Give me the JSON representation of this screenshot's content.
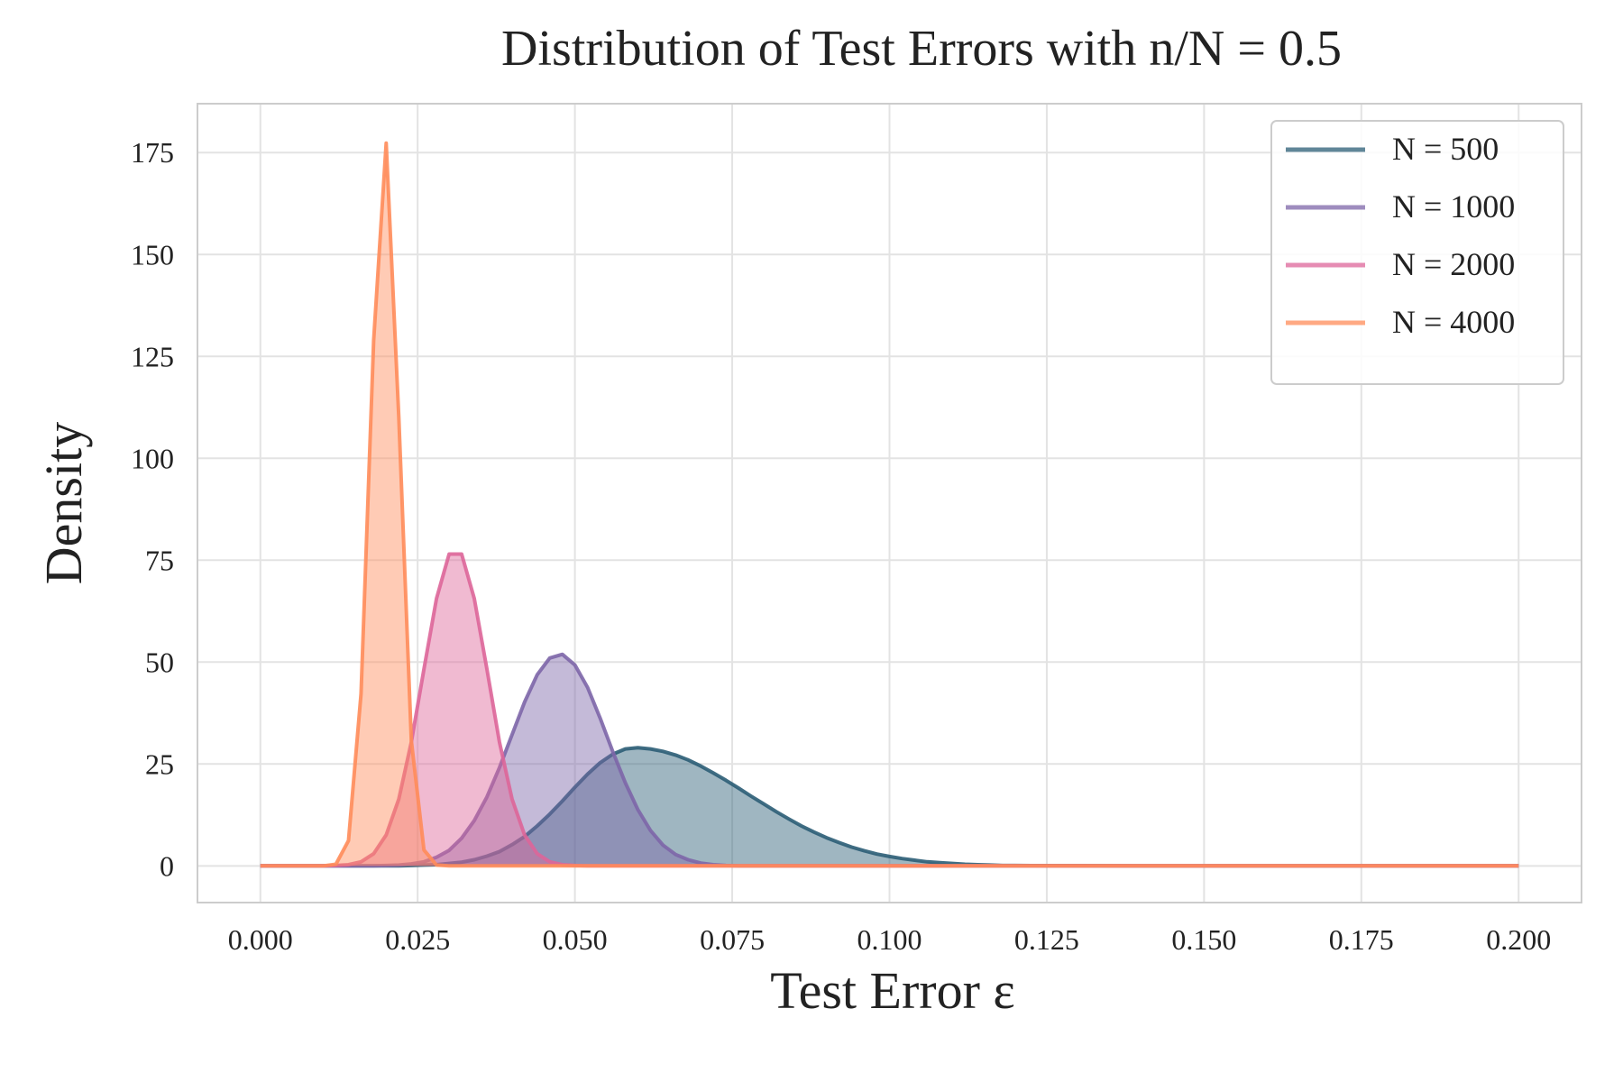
{
  "chart_data": {
    "type": "area-line",
    "title": "Distribution of Test Errors with n/N = 0.5",
    "xlabel": "Test Error ε",
    "ylabel": "Density",
    "x": [
      0,
      0.002,
      0.004,
      0.006,
      0.008,
      0.01,
      0.012,
      0.014,
      0.016,
      0.018,
      0.02,
      0.022,
      0.024,
      0.026,
      0.028,
      0.03,
      0.032,
      0.034,
      0.036,
      0.038,
      0.04,
      0.042,
      0.044,
      0.046,
      0.048,
      0.05,
      0.052,
      0.054,
      0.056,
      0.058,
      0.06,
      0.062,
      0.064,
      0.066,
      0.068,
      0.07,
      0.072,
      0.074,
      0.076,
      0.078,
      0.08,
      0.082,
      0.084,
      0.086,
      0.088,
      0.09,
      0.092,
      0.094,
      0.096,
      0.098,
      0.1,
      0.102,
      0.104,
      0.106,
      0.108,
      0.11,
      0.112,
      0.114,
      0.116,
      0.118,
      0.12,
      0.14,
      0.16,
      0.18,
      0.2
    ],
    "series": [
      {
        "name": "N = 500",
        "color": "#2b5d76",
        "values": [
          0,
          0,
          0,
          0,
          0,
          0,
          0,
          0,
          0,
          0,
          0,
          0,
          0.1,
          0.2,
          0.3,
          0.6,
          0.9,
          1.5,
          2.4,
          3.5,
          5.2,
          7.2,
          9.8,
          12.7,
          15.9,
          19.3,
          22.5,
          25.3,
          27.4,
          28.7,
          29.0,
          28.7,
          28.1,
          27.2,
          26.0,
          24.5,
          22.8,
          21.0,
          19.1,
          17.1,
          15.2,
          13.3,
          11.5,
          9.8,
          8.3,
          6.9,
          5.7,
          4.6,
          3.7,
          2.9,
          2.3,
          1.8,
          1.4,
          1.0,
          0.8,
          0.6,
          0.4,
          0.3,
          0.2,
          0.1,
          0.1,
          0,
          0,
          0,
          0
        ]
      },
      {
        "name": "N = 1000",
        "color": "#7d66a8",
        "values": [
          0,
          0,
          0,
          0,
          0,
          0,
          0,
          0,
          0,
          0,
          0.1,
          0.2,
          0.5,
          1.0,
          2.1,
          3.8,
          6.8,
          11.1,
          16.9,
          24.1,
          32.2,
          40.2,
          46.9,
          51.0,
          51.9,
          49.3,
          43.8,
          36.3,
          28.1,
          20.4,
          13.8,
          8.7,
          5.1,
          2.8,
          1.5,
          0.7,
          0.3,
          0.1,
          0,
          0,
          0,
          0,
          0,
          0,
          0,
          0,
          0,
          0,
          0,
          0,
          0,
          0,
          0,
          0,
          0,
          0,
          0,
          0,
          0,
          0,
          0,
          0,
          0,
          0,
          0
        ]
      },
      {
        "name": "N = 2000",
        "color": "#dd6699",
        "values": [
          0,
          0,
          0,
          0,
          0,
          0,
          0.1,
          0.3,
          1.0,
          3.0,
          7.6,
          16.4,
          30.4,
          48.3,
          65.6,
          76.5,
          76.5,
          65.6,
          48.3,
          30.4,
          16.4,
          7.6,
          3.0,
          1.0,
          0.3,
          0.1,
          0,
          0,
          0,
          0,
          0,
          0,
          0,
          0,
          0,
          0,
          0,
          0,
          0,
          0,
          0,
          0,
          0,
          0,
          0,
          0,
          0,
          0,
          0,
          0,
          0,
          0,
          0,
          0,
          0,
          0,
          0,
          0,
          0,
          0,
          0,
          0,
          0,
          0,
          0
        ]
      },
      {
        "name": "N = 4000",
        "color": "#ff8c5a",
        "values": [
          0,
          0,
          0,
          0,
          0,
          0,
          0.4,
          6.2,
          42.2,
          128.9,
          177.3,
          110.1,
          30.7,
          3.9,
          0.2,
          0,
          0,
          0,
          0,
          0,
          0,
          0,
          0,
          0,
          0,
          0,
          0,
          0,
          0,
          0,
          0,
          0,
          0,
          0,
          0,
          0,
          0,
          0,
          0,
          0,
          0,
          0,
          0,
          0,
          0,
          0,
          0,
          0,
          0,
          0,
          0,
          0,
          0,
          0,
          0,
          0,
          0,
          0,
          0,
          0,
          0,
          0,
          0,
          0,
          0
        ]
      }
    ],
    "xlim": [
      -0.01,
      0.21
    ],
    "ylim": [
      -9,
      187
    ],
    "xticks": [
      {
        "value": 0,
        "label": "0.000"
      },
      {
        "value": 0.025,
        "label": "0.025"
      },
      {
        "value": 0.05,
        "label": "0.050"
      },
      {
        "value": 0.075,
        "label": "0.075"
      },
      {
        "value": 0.1,
        "label": "0.100"
      },
      {
        "value": 0.125,
        "label": "0.125"
      },
      {
        "value": 0.15,
        "label": "0.150"
      },
      {
        "value": 0.175,
        "label": "0.175"
      },
      {
        "value": 0.2,
        "label": "0.200"
      }
    ],
    "yticks": [
      0,
      25,
      50,
      75,
      100,
      125,
      150,
      175
    ],
    "grid": true,
    "legend": "upper right"
  }
}
